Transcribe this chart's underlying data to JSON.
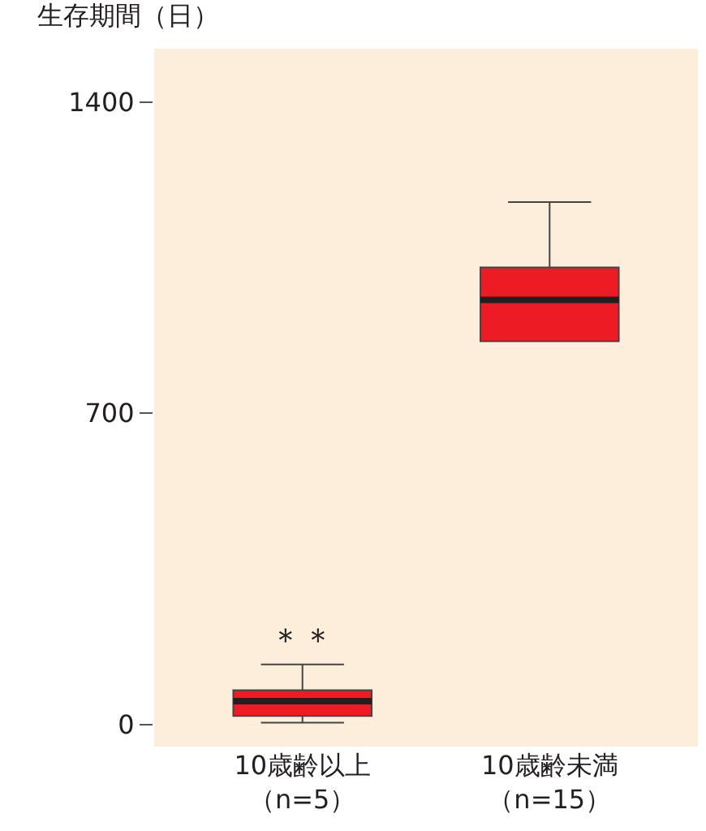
{
  "chart_data": {
    "type": "box",
    "ylabel": "生存期間（日）",
    "categories": [
      "10歳齢以上（n=5）",
      "10歳齢未満（n=15）"
    ],
    "boxes": [
      {
        "low": 4,
        "q1": 19,
        "median": 52,
        "q3": 77,
        "high": 135
      },
      {
        "low": 862,
        "q1": 862,
        "median": 955,
        "q3": 1028,
        "high": 1175
      }
    ],
    "color": "#ed1c24",
    "ylim": [
      -50,
      1520
    ],
    "yticks": [
      0,
      700,
      1400
    ],
    "grid": false,
    "annotations": [
      "＊＊"
    ]
  }
}
